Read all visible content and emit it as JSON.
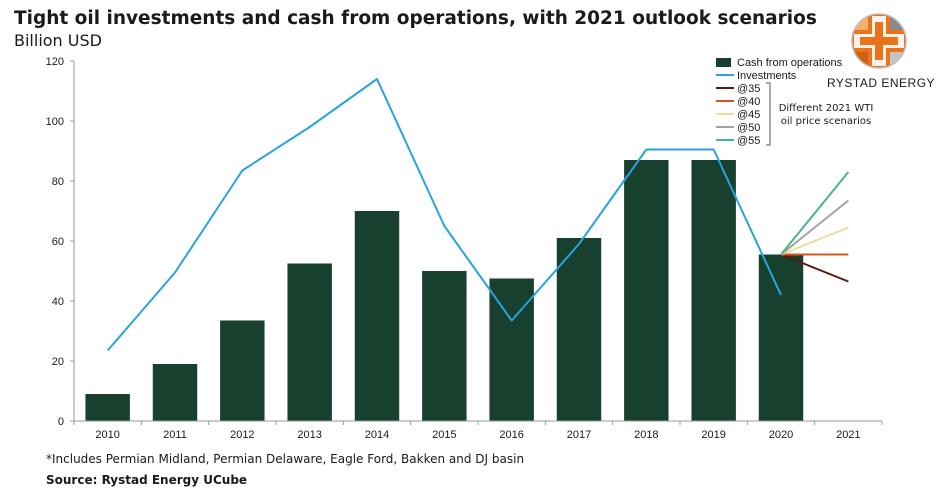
{
  "header": {
    "title": "Tight oil investments and cash from operations, with 2021 outlook scenarios",
    "subtitle": "Billion USD"
  },
  "footer": {
    "footnote": "*Includes Permian Midland, Permian Delaware, Eagle Ford, Bakken and DJ basin",
    "source": "Source: Rystad Energy UCube"
  },
  "brand": {
    "name": "RYSTAD ENERGY"
  },
  "colors": {
    "bars": "#17402f",
    "investments": "#29a3df",
    "@35": "#5a1a10",
    "@40": "#d9531e",
    "@45": "#f2dc9b",
    "@50": "#a3a3a3",
    "@55": "#49b48e",
    "axis": "#9a9a9a",
    "logo_orange": "#e8731a"
  },
  "chart_data": {
    "type": "bar",
    "title": "Tight oil investments and cash from operations, with 2021 outlook scenarios",
    "ylabel": "Billion USD",
    "ylim": [
      0,
      120
    ],
    "yticks": [
      0,
      20,
      40,
      60,
      80,
      100,
      120
    ],
    "categories": [
      "2010",
      "2011",
      "2012",
      "2013",
      "2014",
      "2015",
      "2016",
      "2017",
      "2018",
      "2019",
      "2020",
      "2021"
    ],
    "series": [
      {
        "name": "Cash from operations",
        "type": "bar",
        "values": [
          9,
          19,
          33.5,
          52.5,
          70,
          50,
          47.5,
          61,
          87,
          87,
          55.5,
          null
        ]
      },
      {
        "name": "Investments",
        "type": "line",
        "values": [
          23.5,
          49.5,
          83.5,
          98,
          114,
          65,
          33.5,
          59,
          90.5,
          90.5,
          42,
          null
        ]
      }
    ],
    "scenarios": [
      {
        "name": "@35",
        "from": 55.5,
        "value": 46.5
      },
      {
        "name": "@40",
        "from": 55.5,
        "value": 55.5
      },
      {
        "name": "@45",
        "from": 55.5,
        "value": 64.5
      },
      {
        "name": "@50",
        "from": 55.5,
        "value": 73.5
      },
      {
        "name": "@55",
        "from": 55.5,
        "value": 83
      }
    ],
    "legend": {
      "position": "top-right",
      "entries": [
        "Cash from operations",
        "Investments",
        "@35",
        "@40",
        "@45",
        "@50",
        "@55"
      ],
      "annotation": [
        "Different 2021 WTI",
        "oil price scenarios"
      ]
    }
  }
}
